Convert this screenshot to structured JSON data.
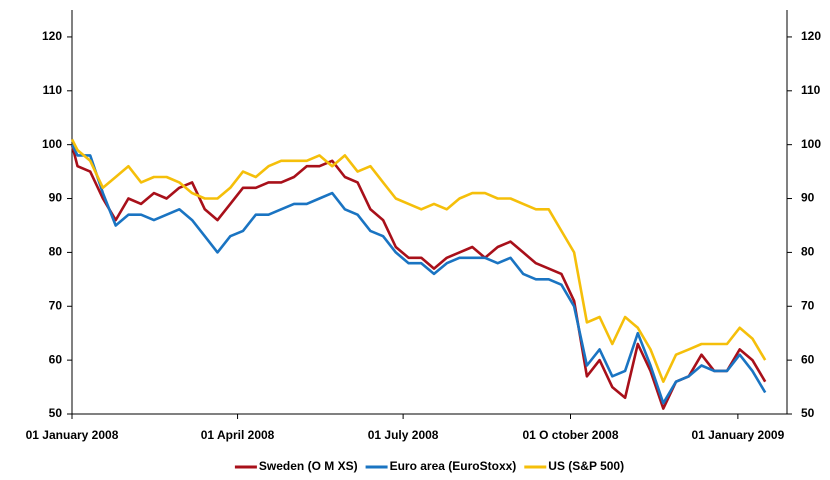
{
  "chart_data": {
    "type": "line",
    "x": [
      "2008-01-01",
      "2008-01-04",
      "2008-01-11",
      "2008-01-18",
      "2008-01-25",
      "2008-02-01",
      "2008-02-08",
      "2008-02-15",
      "2008-02-22",
      "2008-02-29",
      "2008-03-07",
      "2008-03-14",
      "2008-03-21",
      "2008-03-28",
      "2008-04-04",
      "2008-04-11",
      "2008-04-18",
      "2008-04-25",
      "2008-05-02",
      "2008-05-09",
      "2008-05-16",
      "2008-05-23",
      "2008-05-30",
      "2008-06-06",
      "2008-06-13",
      "2008-06-20",
      "2008-06-27",
      "2008-07-04",
      "2008-07-11",
      "2008-07-18",
      "2008-07-25",
      "2008-08-01",
      "2008-08-08",
      "2008-08-15",
      "2008-08-22",
      "2008-08-29",
      "2008-09-05",
      "2008-09-12",
      "2008-09-19",
      "2008-09-26",
      "2008-10-03",
      "2008-10-10",
      "2008-10-17",
      "2008-10-24",
      "2008-10-31",
      "2008-11-07",
      "2008-11-14",
      "2008-11-21",
      "2008-11-28",
      "2008-12-05",
      "2008-12-12",
      "2008-12-19",
      "2008-12-26",
      "2009-01-02",
      "2009-01-09",
      "2009-01-16"
    ],
    "series": [
      {
        "name": "Sweden (O M XS)",
        "color": "#a8101a",
        "values": [
          100,
          96,
          95,
          90,
          86,
          90,
          89,
          91,
          90,
          92,
          93,
          88,
          86,
          89,
          92,
          92,
          93,
          93,
          94,
          96,
          96,
          97,
          94,
          93,
          88,
          86,
          81,
          79,
          79,
          77,
          79,
          80,
          81,
          79,
          81,
          82,
          80,
          78,
          77,
          76,
          71,
          57,
          60,
          55,
          53,
          63,
          58,
          51,
          56,
          57,
          61,
          58,
          58,
          62,
          60,
          56
        ]
      },
      {
        "name": "Euro area (EuroStoxx)",
        "color": "#1a74c2",
        "values": [
          100,
          98,
          98,
          91,
          85,
          87,
          87,
          86,
          87,
          88,
          86,
          83,
          80,
          83,
          84,
          87,
          87,
          88,
          89,
          89,
          90,
          91,
          88,
          87,
          84,
          83,
          80,
          78,
          78,
          76,
          78,
          79,
          79,
          79,
          78,
          79,
          76,
          75,
          75,
          74,
          70,
          59,
          62,
          57,
          58,
          65,
          59,
          52,
          56,
          57,
          59,
          58,
          58,
          61,
          58,
          54
        ]
      },
      {
        "name": "US (S&P 500)",
        "color": "#f5bf0a",
        "values": [
          101,
          99,
          97,
          92,
          94,
          96,
          93,
          94,
          94,
          93,
          91,
          90,
          90,
          92,
          95,
          94,
          96,
          97,
          97,
          97,
          98,
          96,
          98,
          95,
          96,
          93,
          90,
          89,
          88,
          89,
          88,
          90,
          91,
          91,
          90,
          90,
          89,
          88,
          88,
          84,
          80,
          67,
          68,
          63,
          68,
          66,
          62,
          56,
          61,
          62,
          63,
          63,
          63,
          66,
          64,
          60
        ]
      }
    ],
    "xlim": [
      "2008-01-01",
      "2009-01-28"
    ],
    "xticks": [
      {
        "value": "2008-01-01",
        "label": "01 January 2008"
      },
      {
        "value": "2008-04-01",
        "label": "01 April 2008"
      },
      {
        "value": "2008-07-01",
        "label": "01 July 2008"
      },
      {
        "value": "2008-10-01",
        "label": "01 O ctober 2008"
      },
      {
        "value": "2009-01-01",
        "label": "01 January 2009"
      }
    ],
    "ylim": [
      50,
      125
    ],
    "yticks": [
      50,
      60,
      70,
      80,
      90,
      100,
      110,
      120
    ],
    "y2lim": [
      50,
      125
    ],
    "y2ticks": [
      50,
      60,
      70,
      80,
      90,
      100,
      110,
      120
    ],
    "legend": "bottom"
  }
}
